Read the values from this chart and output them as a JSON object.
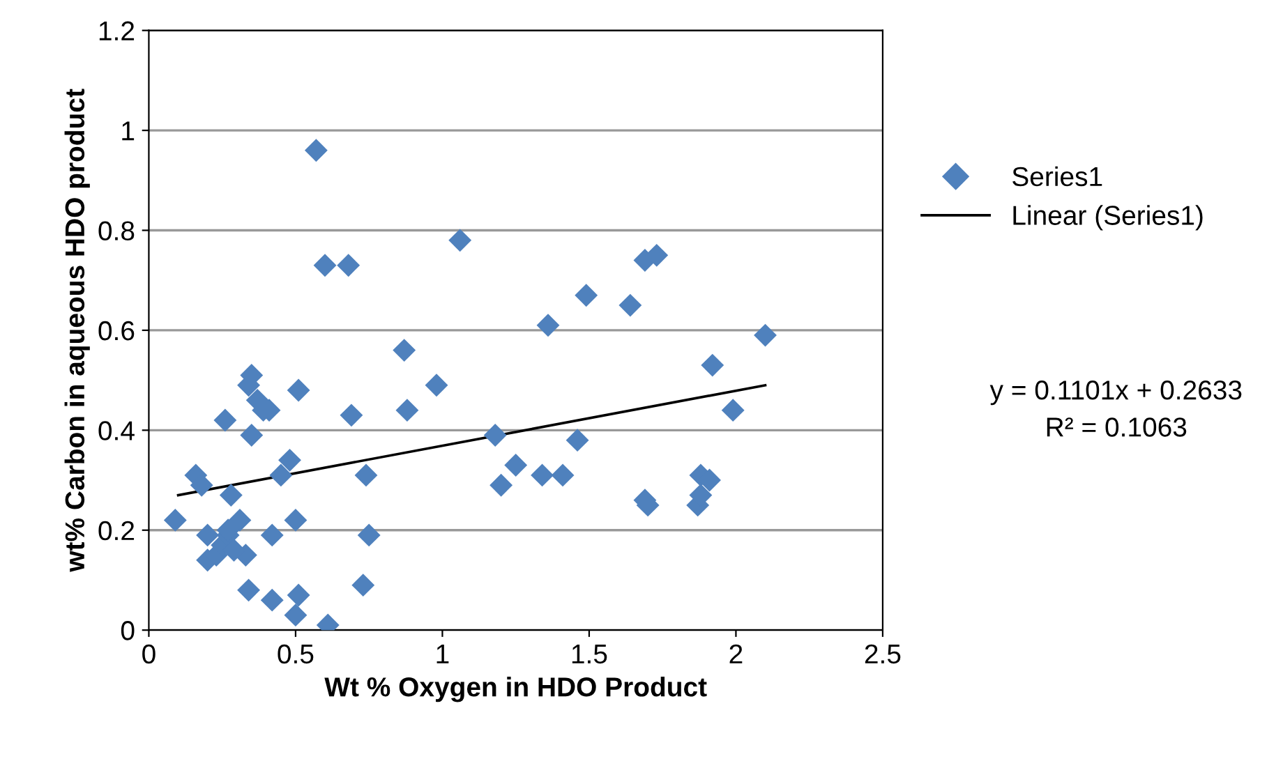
{
  "chart_data": {
    "type": "scatter",
    "xlabel": "Wt % Oxygen in HDO Product",
    "ylabel": "wt% Carbon in aqueous HDO product",
    "series": [
      {
        "name": "Series1",
        "color": "#4f81bd",
        "marker": "diamond",
        "x": [
          0.09,
          0.16,
          0.18,
          0.2,
          0.2,
          0.23,
          0.25,
          0.27,
          0.26,
          0.28,
          0.31,
          0.33,
          0.34,
          0.35,
          0.35,
          0.34,
          0.37,
          0.39,
          0.41,
          0.42,
          0.42,
          0.45,
          0.48,
          0.5,
          0.5,
          0.51,
          0.51,
          0.57,
          0.61,
          0.6,
          0.68,
          0.69,
          0.73,
          0.74,
          0.75,
          0.87,
          0.88,
          0.98,
          1.06,
          1.18,
          1.2,
          1.25,
          1.34,
          1.36,
          1.41,
          1.46,
          1.49,
          1.64,
          1.69,
          1.73,
          1.69,
          1.7,
          1.87,
          1.88,
          1.88,
          1.91,
          1.92,
          1.99,
          2.1,
          0.27,
          0.29
        ],
        "values": [
          0.22,
          0.31,
          0.29,
          0.19,
          0.14,
          0.15,
          0.17,
          0.19,
          0.42,
          0.27,
          0.22,
          0.15,
          0.08,
          0.39,
          0.51,
          0.49,
          0.46,
          0.44,
          0.44,
          0.19,
          0.06,
          0.31,
          0.34,
          0.22,
          0.03,
          0.48,
          0.07,
          0.96,
          0.01,
          0.73,
          0.73,
          0.43,
          0.09,
          0.31,
          0.19,
          0.56,
          0.44,
          0.49,
          0.78,
          0.39,
          0.29,
          0.33,
          0.31,
          0.61,
          0.31,
          0.38,
          0.67,
          0.65,
          0.74,
          0.75,
          0.26,
          0.25,
          0.25,
          0.27,
          0.31,
          0.3,
          0.53,
          0.44,
          0.59,
          0.2,
          0.16
        ]
      },
      {
        "name": "Linear (Series1)",
        "type": "line",
        "color": "#000000",
        "marker": "none",
        "line_style": "solid",
        "x": [
          0.1,
          2.1
        ],
        "values": [
          0.27,
          0.49
        ]
      }
    ],
    "xlim": [
      0,
      2.5
    ],
    "xticks": [
      0,
      0.5,
      1,
      1.5,
      2,
      2.5
    ],
    "ylim": [
      0,
      1.2
    ],
    "yticks": [
      0,
      0.2,
      0.4,
      0.6,
      0.8,
      1,
      1.2
    ],
    "grid": "y",
    "legend": "right",
    "annotations": [
      "y = 0.1101x + 0.2633\nR² = 0.1063"
    ]
  }
}
